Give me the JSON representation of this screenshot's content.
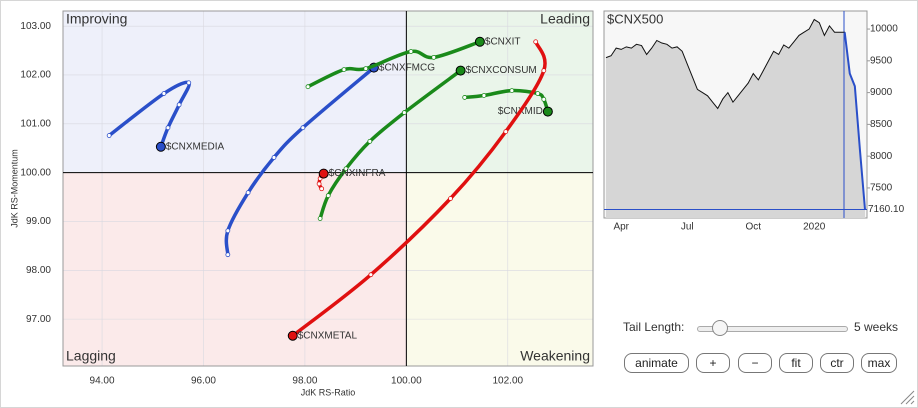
{
  "chart_data": [
    {
      "type": "rrg",
      "xlabel": "JdK RS-Ratio",
      "ylabel": "JdK RS-Momentum",
      "xlim": [
        93.23,
        103.68
      ],
      "ylim": [
        96.04,
        103.31
      ],
      "center": [
        100,
        100
      ],
      "xticks": [
        {
          "value": 94,
          "label": "94.00"
        },
        {
          "value": 96,
          "label": "96.00"
        },
        {
          "value": 98,
          "label": "98.00"
        },
        {
          "value": 100,
          "label": "100.00"
        },
        {
          "value": 102,
          "label": "102.00"
        }
      ],
      "yticks": [
        {
          "value": 97,
          "label": "97.00"
        },
        {
          "value": 98,
          "label": "98.00"
        },
        {
          "value": 99,
          "label": "99.00"
        },
        {
          "value": 100,
          "label": "100.00"
        },
        {
          "value": 101,
          "label": "101.00"
        },
        {
          "value": 102,
          "label": "102.00"
        },
        {
          "value": 103,
          "label": "103.00"
        }
      ],
      "grid": true,
      "quadrants": [
        {
          "name": "Improving",
          "color": "#7f8fe0",
          "fill": "#eef0fa",
          "corner": "top-left"
        },
        {
          "name": "Leading",
          "color": "#5fb86a",
          "fill": "#eaf5ea",
          "corner": "top-right"
        },
        {
          "name": "Lagging",
          "color": "#f09a9a",
          "fill": "#fbeaea",
          "corner": "bottom-left"
        },
        {
          "name": "Weakening",
          "color": "#e6c34a",
          "fill": "#fafaea",
          "corner": "bottom-right"
        }
      ],
      "series": [
        {
          "name": "$CNXMEDIA",
          "color": "#2a4fc9",
          "x": [
            94.14,
            95.22,
            95.71,
            95.52,
            95.3,
            95.16
          ],
          "values": [
            100.76,
            101.62,
            101.84,
            101.39,
            100.92,
            100.53
          ]
        },
        {
          "name": "$CNXFMCG",
          "color": "#2a4fc9",
          "x": [
            96.48,
            96.48,
            96.88,
            97.39,
            97.96,
            99.36
          ],
          "values": [
            98.32,
            98.81,
            99.59,
            100.31,
            100.92,
            102.15
          ]
        },
        {
          "name": "$CNXIT",
          "color": "#1a8a1a",
          "x": [
            98.06,
            98.77,
            99.2,
            100.09,
            100.54,
            101.45
          ],
          "values": [
            101.76,
            102.11,
            102.13,
            102.48,
            102.36,
            102.68
          ]
        },
        {
          "name": "$CNXCONSUM",
          "color": "#1a8a1a",
          "x": [
            98.3,
            98.46,
            98.81,
            99.28,
            99.96,
            101.07
          ],
          "values": [
            99.06,
            99.53,
            100.08,
            100.64,
            101.23,
            102.09
          ]
        },
        {
          "name": "$CNXMID",
          "color": "#1a8a1a",
          "x": [
            101.15,
            101.53,
            102.08,
            102.59,
            102.71,
            102.79
          ],
          "values": [
            101.54,
            101.58,
            101.68,
            101.62,
            101.5,
            101.25
          ]
        },
        {
          "name": "$CNXINFRA",
          "color": "#e01010",
          "x": [
            98.33,
            98.28,
            98.3,
            98.32,
            98.37
          ],
          "values": [
            99.67,
            99.77,
            99.88,
            99.94,
            99.98
          ]
        },
        {
          "name": "$CNXMETAL",
          "color": "#e01010",
          "x": [
            102.55,
            102.71,
            101.96,
            100.87,
            99.3,
            97.76
          ],
          "values": [
            102.68,
            102.09,
            100.84,
            99.47,
            97.91,
            96.66
          ]
        }
      ]
    },
    {
      "type": "line",
      "title": "$CNX500",
      "color": "#2a4fc9",
      "fill": "#d6d6d6",
      "categories": [
        null,
        null,
        null,
        "Apr",
        null,
        null,
        null,
        null,
        null,
        null,
        null,
        null,
        null,
        null,
        null,
        null,
        "Jul",
        null,
        null,
        null,
        null,
        null,
        null,
        null,
        null,
        null,
        null,
        null,
        null,
        "Oct",
        null,
        null,
        null,
        null,
        null,
        null,
        null,
        null,
        null,
        null,
        null,
        "2020",
        null,
        null,
        null,
        null,
        null,
        null,
        null,
        null,
        null,
        null
      ],
      "values": [
        9550,
        9580,
        9700,
        9680,
        9720,
        9700,
        9760,
        9740,
        9600,
        9700,
        9820,
        9780,
        9760,
        9700,
        9720,
        9650,
        9450,
        9250,
        9050,
        9000,
        8950,
        8850,
        8750,
        8900,
        9000,
        8850,
        8950,
        9050,
        9150,
        9300,
        9200,
        9350,
        9500,
        9650,
        9600,
        9750,
        9700,
        9800,
        9900,
        9950,
        10000,
        10150,
        10100,
        9900,
        10050,
        9950,
        9950,
        9950,
        9300,
        9100,
        8100,
        7160.1
      ],
      "ylim": [
        7027,
        10284
      ],
      "yticks": [
        7500,
        8000,
        8500,
        9000,
        9500,
        10000
      ],
      "last_value": {
        "value": 7160.1,
        "label": "7160.10"
      }
    }
  ],
  "controls": {
    "tail_label": "Tail Length:",
    "tail_value": "5 weeks",
    "buttons": [
      "animate",
      "+",
      "−",
      "fit",
      "ctr",
      "max"
    ]
  }
}
